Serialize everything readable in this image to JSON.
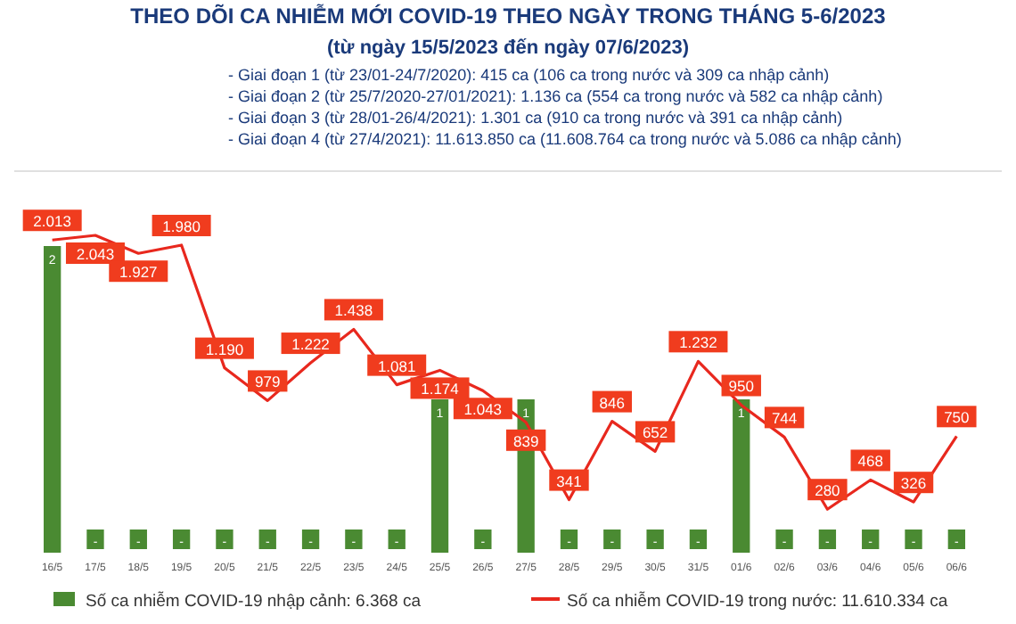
{
  "chart_data": {
    "type": "bar",
    "title": "THEO DÕI CA NHIỄM MỚI COVID-19 THEO NGÀY TRONG THÁNG 5-6/2023",
    "subtitle": "(từ ngày 15/5/2023 đến ngày 07/6/2023)",
    "annotations": [
      "- Giai đoạn 1 (từ 23/01-24/7/2020): 415 ca (106 ca trong nước và 309 ca nhập cảnh)",
      "- Giai đoạn 2 (từ 25/7/2020-27/01/2021): 1.136 ca (554 ca trong nước và 582 ca nhập cảnh)",
      "- Giai đoạn 3 (từ 28/01-26/4/2021): 1.301 ca (910 ca trong nước và 391 ca nhập cảnh)",
      "- Giai đoạn 4 (từ 27/4/2021): 11.613.850 ca (11.608.764 ca trong nước và 5.086 ca nhập cảnh)"
    ],
    "categories": [
      "16/5",
      "17/5",
      "18/5",
      "19/5",
      "20/5",
      "21/5",
      "22/5",
      "23/5",
      "24/5",
      "25/5",
      "26/5",
      "27/5",
      "28/5",
      "29/5",
      "30/5",
      "31/5",
      "01/6",
      "02/6",
      "03/6",
      "04/6",
      "05/6",
      "06/6"
    ],
    "series": [
      {
        "name": "Số ca nhiễm COVID-19 nhập cảnh: 6.368 ca",
        "axis": "y2",
        "color": "#4a8a32",
        "values": [
          2,
          0,
          0,
          0,
          0,
          0,
          0,
          0,
          0,
          1,
          0,
          1,
          0,
          0,
          0,
          0,
          1,
          0,
          0,
          0,
          0,
          0
        ],
        "value_labels": [
          "2",
          "-",
          "-",
          "-",
          "-",
          "-",
          "-",
          "-",
          "-",
          "1",
          "-",
          "1",
          "-",
          "-",
          "-",
          "-",
          "1",
          "-",
          "-",
          "-",
          "-",
          "-"
        ]
      },
      {
        "name": "Số ca nhiễm COVID-19 trong nước: 11.610.334 ca",
        "type": "line",
        "color": "#e8281e",
        "values": [
          2013,
          2043,
          1927,
          1980,
          1190,
          979,
          1222,
          1438,
          1081,
          1174,
          1043,
          839,
          341,
          846,
          652,
          1232,
          950,
          744,
          280,
          468,
          326,
          750
        ],
        "value_labels": [
          "2.013",
          "2.043",
          "1.927",
          "1.980",
          "1.190",
          "979",
          "1.222",
          "1.438",
          "1.081",
          "1.174",
          "1.043",
          "839",
          "341",
          "846",
          "652",
          "1.232",
          "950",
          "744",
          "280",
          "468",
          "326",
          "750"
        ]
      }
    ],
    "tick_labels": "x",
    "legend": "bottom",
    "marker": "none"
  }
}
